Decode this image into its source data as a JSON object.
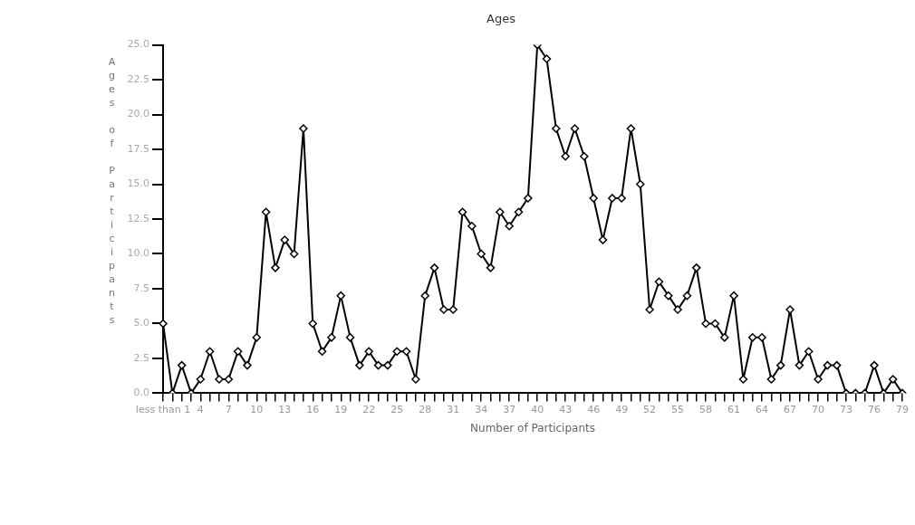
{
  "chart_data": {
    "type": "line",
    "title": "Ages",
    "xlabel": "Number of Participants",
    "ylabel": "Ages of Participants",
    "categories": [
      "less than 1",
      null,
      null,
      null,
      "4",
      null,
      null,
      "7",
      null,
      null,
      "10",
      null,
      null,
      "13",
      null,
      null,
      "16",
      null,
      null,
      "19",
      null,
      null,
      "22",
      null,
      null,
      "25",
      null,
      null,
      "28",
      null,
      null,
      "31",
      null,
      null,
      "34",
      null,
      null,
      "37",
      null,
      null,
      "40",
      null,
      null,
      "43",
      null,
      null,
      "46",
      null,
      null,
      "49",
      null,
      null,
      "52",
      null,
      null,
      "55",
      null,
      null,
      "58",
      null,
      null,
      "61",
      null,
      null,
      "64",
      null,
      null,
      "67",
      null,
      null,
      "70",
      null,
      null,
      "73",
      null,
      null,
      "76",
      null,
      null,
      "79"
    ],
    "series": [
      {
        "color": "#000000",
        "values": [
          5,
          0,
          2,
          0,
          1,
          3,
          1,
          1,
          3,
          2,
          4,
          13,
          9,
          11,
          10,
          19,
          5,
          3,
          4,
          7,
          4,
          2,
          3,
          2,
          2,
          3,
          3,
          1,
          7,
          9,
          6,
          6,
          13,
          12,
          10,
          9,
          13,
          12,
          13,
          14,
          25,
          24,
          19,
          17,
          19,
          17,
          14,
          11,
          14,
          14,
          19,
          15,
          6,
          8,
          7,
          6,
          7,
          9,
          5,
          5,
          4,
          7,
          1,
          4,
          4,
          1,
          2,
          6,
          2,
          3,
          1,
          2,
          2,
          0,
          0,
          0,
          2,
          0,
          1,
          0
        ]
      }
    ],
    "ylim": [
      0,
      25
    ],
    "yticks": [
      {
        "value": 0,
        "label": "0.0"
      },
      {
        "value": 2.5,
        "label": "2.5"
      },
      {
        "value": 5,
        "label": "5.0"
      },
      {
        "value": 7.5,
        "label": "7.5"
      },
      {
        "value": 10,
        "label": "10.0"
      },
      {
        "value": 12.5,
        "label": "12.5"
      },
      {
        "value": 15,
        "label": "15.0"
      },
      {
        "value": 17.5,
        "label": "17.5"
      },
      {
        "value": 20,
        "label": "20.0"
      },
      {
        "value": 22.5,
        "label": "22.5"
      },
      {
        "value": 25,
        "label": "25.0"
      }
    ],
    "grid": false,
    "marker": "diamond",
    "line_style": "solid"
  }
}
